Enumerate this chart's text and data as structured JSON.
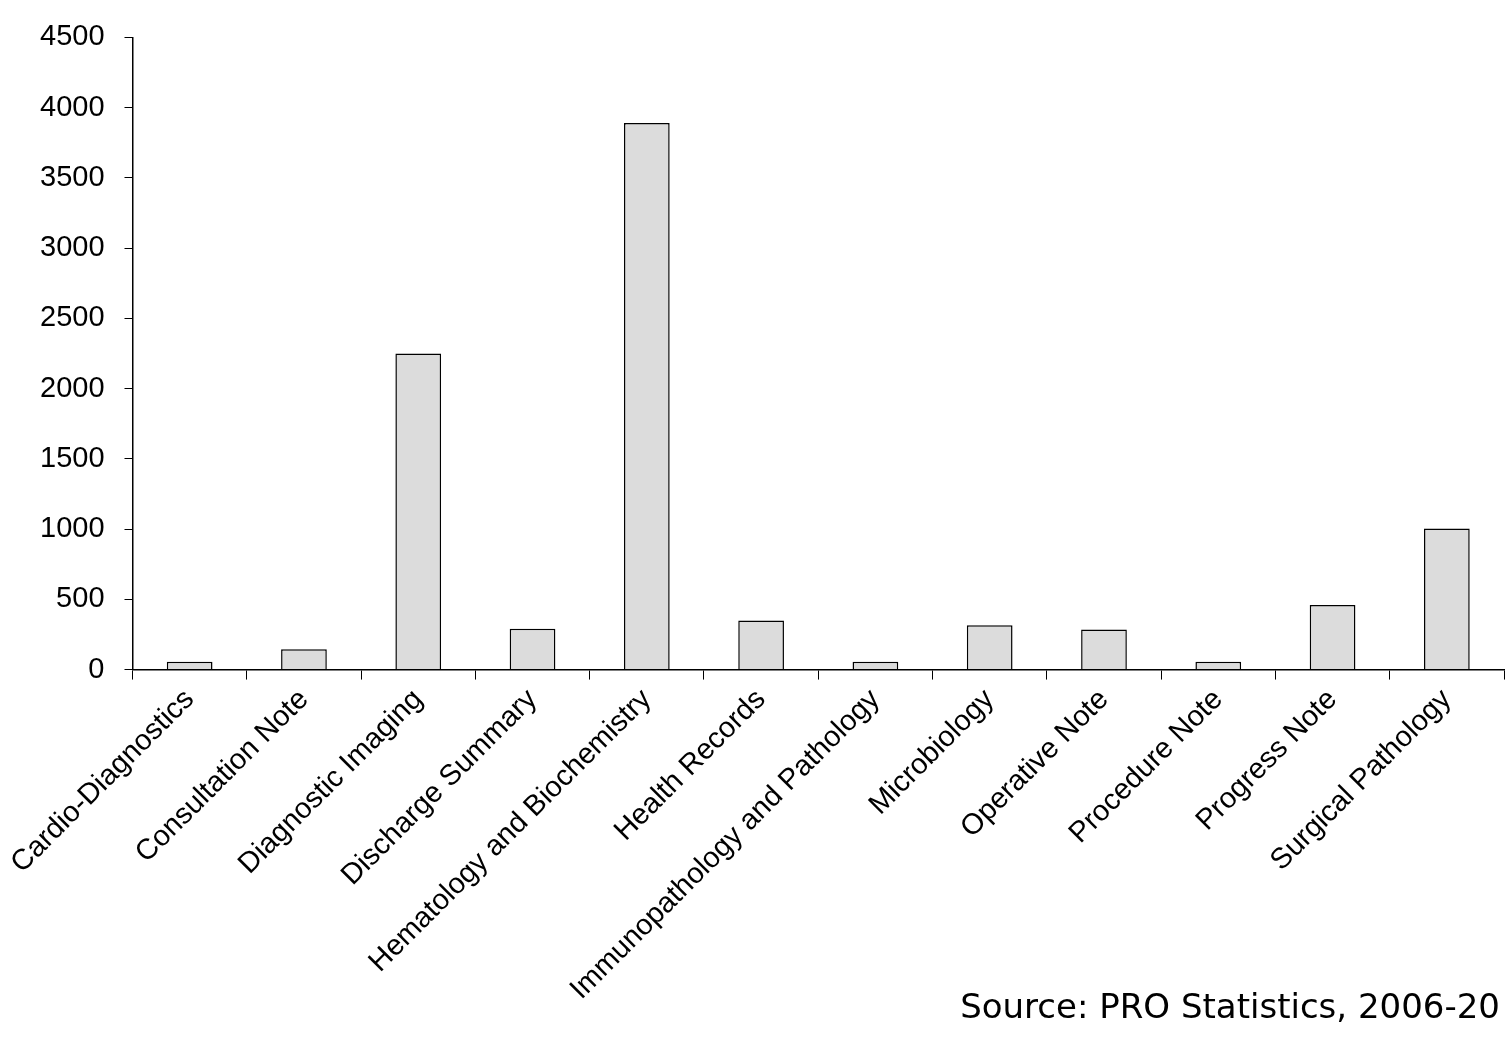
{
  "chart_data": {
    "type": "bar",
    "categories": [
      "Cardio-Diagnostics",
      "Consultation Note",
      "Diagnostic Imaging",
      "Discharge Summary",
      "Hematology and Biochemistry",
      "Health Records",
      "Immunopathology and Pathology",
      "Microbiology",
      "Operative Note",
      "Procedure Note",
      "Progress Note",
      "Surgical Pathology"
    ],
    "values": [
      55,
      145,
      2250,
      290,
      3890,
      350,
      55,
      315,
      285,
      55,
      460,
      1005
    ],
    "color": "#dcdcdc",
    "ylim": [
      0,
      4500
    ],
    "yticks": [
      0,
      500,
      1000,
      1500,
      2000,
      2500,
      3000,
      3500,
      4000,
      4500
    ],
    "grid": false,
    "legend": false,
    "annotations": [
      "Source: PRO Statistics, 2006-20"
    ]
  }
}
